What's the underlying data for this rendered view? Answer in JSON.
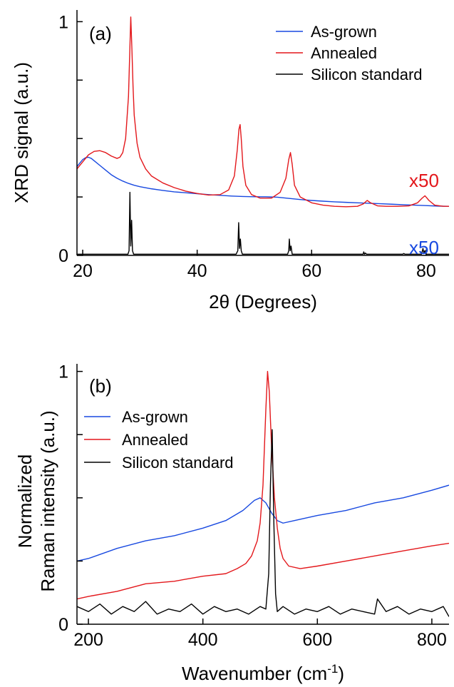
{
  "chart_data": [
    {
      "type": "line",
      "panel_label": "(a)",
      "xlabel": "2θ (Degrees)",
      "ylabel": "XRD signal (a.u.)",
      "xlim": [
        19,
        84
      ],
      "ylim": [
        0,
        1.05
      ],
      "xticks": [
        20,
        40,
        60,
        80
      ],
      "xtick_labels": [
        "20",
        "40",
        "60",
        "80"
      ],
      "yticks": [
        0,
        0.25,
        0.5,
        0.75,
        1.0
      ],
      "ytick_labels": [
        "0",
        "",
        "",
        "",
        "1"
      ],
      "legend_position": "top-right",
      "annotations": [
        {
          "text": "x50",
          "color": "#e3171b",
          "series": "Annealed"
        },
        {
          "text": "x50",
          "color": "#1849e0",
          "series": "As-grown"
        }
      ],
      "series": [
        {
          "name": "As-grown",
          "color": "#1849e0",
          "x": [
            19.0,
            19.5,
            20.0,
            20.5,
            21.0,
            21.5,
            22.0,
            23.0,
            24.0,
            25.0,
            26.0,
            27.0,
            28.0,
            29.0,
            30.0,
            32.0,
            34.0,
            36.0,
            38.0,
            40.0,
            42.0,
            44.0,
            46.0,
            48.0,
            50.0,
            52.0,
            54.0,
            56.0,
            58.0,
            60.0,
            62.0,
            64.0,
            66.0,
            68.0,
            70.0,
            72.0,
            74.0,
            76.0,
            78.0,
            80.0,
            82.0,
            84.0
          ],
          "y": [
            0.38,
            0.395,
            0.41,
            0.418,
            0.42,
            0.415,
            0.405,
            0.385,
            0.365,
            0.345,
            0.33,
            0.318,
            0.308,
            0.3,
            0.294,
            0.285,
            0.278,
            0.272,
            0.268,
            0.264,
            0.26,
            0.257,
            0.254,
            0.252,
            0.251,
            0.251,
            0.249,
            0.244,
            0.239,
            0.235,
            0.232,
            0.229,
            0.227,
            0.225,
            0.223,
            0.221,
            0.219,
            0.217,
            0.215,
            0.213,
            0.211,
            0.21
          ]
        },
        {
          "name": "Annealed",
          "color": "#e3171b",
          "x": [
            19.0,
            20.0,
            21.0,
            22.0,
            23.0,
            24.0,
            25.0,
            26.0,
            26.5,
            27.0,
            27.5,
            28.0,
            28.2,
            28.4,
            28.6,
            28.8,
            29.0,
            29.5,
            30.0,
            31.0,
            32.0,
            34.0,
            36.0,
            38.0,
            40.0,
            42.0,
            44.0,
            45.5,
            46.5,
            47.0,
            47.3,
            47.5,
            47.7,
            48.0,
            48.5,
            49.5,
            51.0,
            53.0,
            54.5,
            55.5,
            56.0,
            56.3,
            56.6,
            57.0,
            58.0,
            60.0,
            62.0,
            64.0,
            66.0,
            68.0,
            69.0,
            69.7,
            70.3,
            71.5,
            73.0,
            75.0,
            77.0,
            78.5,
            79.3,
            79.8,
            80.5,
            81.5,
            83.0,
            84.0
          ],
          "y": [
            0.37,
            0.4,
            0.43,
            0.445,
            0.448,
            0.44,
            0.425,
            0.415,
            0.42,
            0.44,
            0.5,
            0.68,
            0.85,
            1.02,
            0.88,
            0.72,
            0.6,
            0.48,
            0.42,
            0.37,
            0.34,
            0.31,
            0.29,
            0.275,
            0.265,
            0.258,
            0.26,
            0.28,
            0.34,
            0.45,
            0.54,
            0.56,
            0.5,
            0.38,
            0.3,
            0.26,
            0.245,
            0.245,
            0.27,
            0.33,
            0.41,
            0.44,
            0.39,
            0.3,
            0.25,
            0.225,
            0.215,
            0.21,
            0.208,
            0.21,
            0.22,
            0.235,
            0.225,
            0.212,
            0.21,
            0.21,
            0.212,
            0.225,
            0.245,
            0.255,
            0.235,
            0.215,
            0.21,
            0.21
          ]
        },
        {
          "name": "Silicon standard",
          "color": "#000000",
          "x": [
            19.0,
            27.9,
            28.1,
            28.25,
            28.4,
            28.55,
            28.7,
            28.9,
            46.8,
            47.1,
            47.25,
            47.4,
            47.55,
            47.7,
            47.9,
            55.8,
            56.0,
            56.1,
            56.25,
            56.4,
            56.6,
            69.0,
            69.1,
            69.25,
            69.4,
            69.6,
            75.9,
            76.1,
            76.3,
            79.2,
            79.45,
            79.6,
            79.75,
            80.0,
            84.0
          ],
          "y": [
            0.005,
            0.005,
            0.02,
            0.27,
            0.04,
            0.15,
            0.02,
            0.005,
            0.005,
            0.02,
            0.14,
            0.03,
            0.07,
            0.02,
            0.005,
            0.005,
            0.02,
            0.07,
            0.02,
            0.04,
            0.005,
            0.005,
            0.015,
            0.005,
            0.01,
            0.005,
            0.005,
            0.008,
            0.005,
            0.005,
            0.03,
            0.01,
            0.02,
            0.005,
            0.005
          ]
        }
      ]
    },
    {
      "type": "line",
      "panel_label": "(b)",
      "xlabel": "Wavenumber (cm-1)",
      "xlabel_parts": [
        "Wavenumber (cm",
        "-1",
        ")"
      ],
      "ylabel": "Normalized Raman intensity (a.u.)",
      "ylabel_lines": [
        "Normalized",
        "Raman intensity (a.u.)"
      ],
      "xlim": [
        180,
        830
      ],
      "ylim": [
        0,
        1.03
      ],
      "xticks": [
        200,
        400,
        600,
        800
      ],
      "xtick_labels": [
        "200",
        "400",
        "600",
        "800"
      ],
      "yticks": [
        0,
        0.25,
        0.5,
        0.75,
        1.0
      ],
      "ytick_labels": [
        "0",
        "",
        "",
        "",
        "1"
      ],
      "legend_position": "top-left",
      "series": [
        {
          "name": "As-grown",
          "color": "#1849e0",
          "x": [
            180,
            200,
            250,
            300,
            350,
            400,
            440,
            470,
            490,
            500,
            510,
            520,
            530,
            540,
            560,
            600,
            650,
            700,
            750,
            800,
            830
          ],
          "y": [
            0.25,
            0.26,
            0.3,
            0.33,
            0.35,
            0.38,
            0.41,
            0.45,
            0.49,
            0.5,
            0.48,
            0.44,
            0.41,
            0.4,
            0.41,
            0.43,
            0.45,
            0.48,
            0.5,
            0.53,
            0.55
          ]
        },
        {
          "name": "Annealed",
          "color": "#e3171b",
          "x": [
            180,
            200,
            250,
            300,
            350,
            400,
            440,
            460,
            475,
            485,
            495,
            500,
            505,
            510,
            513,
            516,
            520,
            525,
            530,
            535,
            540,
            550,
            570,
            600,
            650,
            700,
            750,
            800,
            830
          ],
          "y": [
            0.1,
            0.11,
            0.13,
            0.16,
            0.17,
            0.19,
            0.2,
            0.22,
            0.24,
            0.27,
            0.33,
            0.4,
            0.55,
            0.85,
            1.0,
            0.92,
            0.7,
            0.5,
            0.38,
            0.3,
            0.26,
            0.23,
            0.22,
            0.23,
            0.25,
            0.27,
            0.29,
            0.31,
            0.32
          ]
        },
        {
          "name": "Silicon standard",
          "color": "#000000",
          "x": [
            180,
            200,
            220,
            240,
            260,
            280,
            300,
            320,
            340,
            360,
            380,
            400,
            420,
            440,
            460,
            480,
            500,
            510,
            515,
            518,
            521,
            524,
            527,
            530,
            540,
            560,
            580,
            600,
            620,
            640,
            660,
            680,
            700,
            705,
            720,
            740,
            760,
            780,
            800,
            820,
            830
          ],
          "y": [
            0.07,
            0.05,
            0.08,
            0.04,
            0.07,
            0.05,
            0.09,
            0.04,
            0.06,
            0.05,
            0.08,
            0.04,
            0.07,
            0.05,
            0.06,
            0.04,
            0.07,
            0.06,
            0.2,
            0.55,
            0.77,
            0.4,
            0.12,
            0.05,
            0.07,
            0.04,
            0.06,
            0.05,
            0.07,
            0.04,
            0.06,
            0.05,
            0.04,
            0.1,
            0.05,
            0.07,
            0.04,
            0.06,
            0.05,
            0.07,
            0.03
          ]
        }
      ]
    }
  ]
}
